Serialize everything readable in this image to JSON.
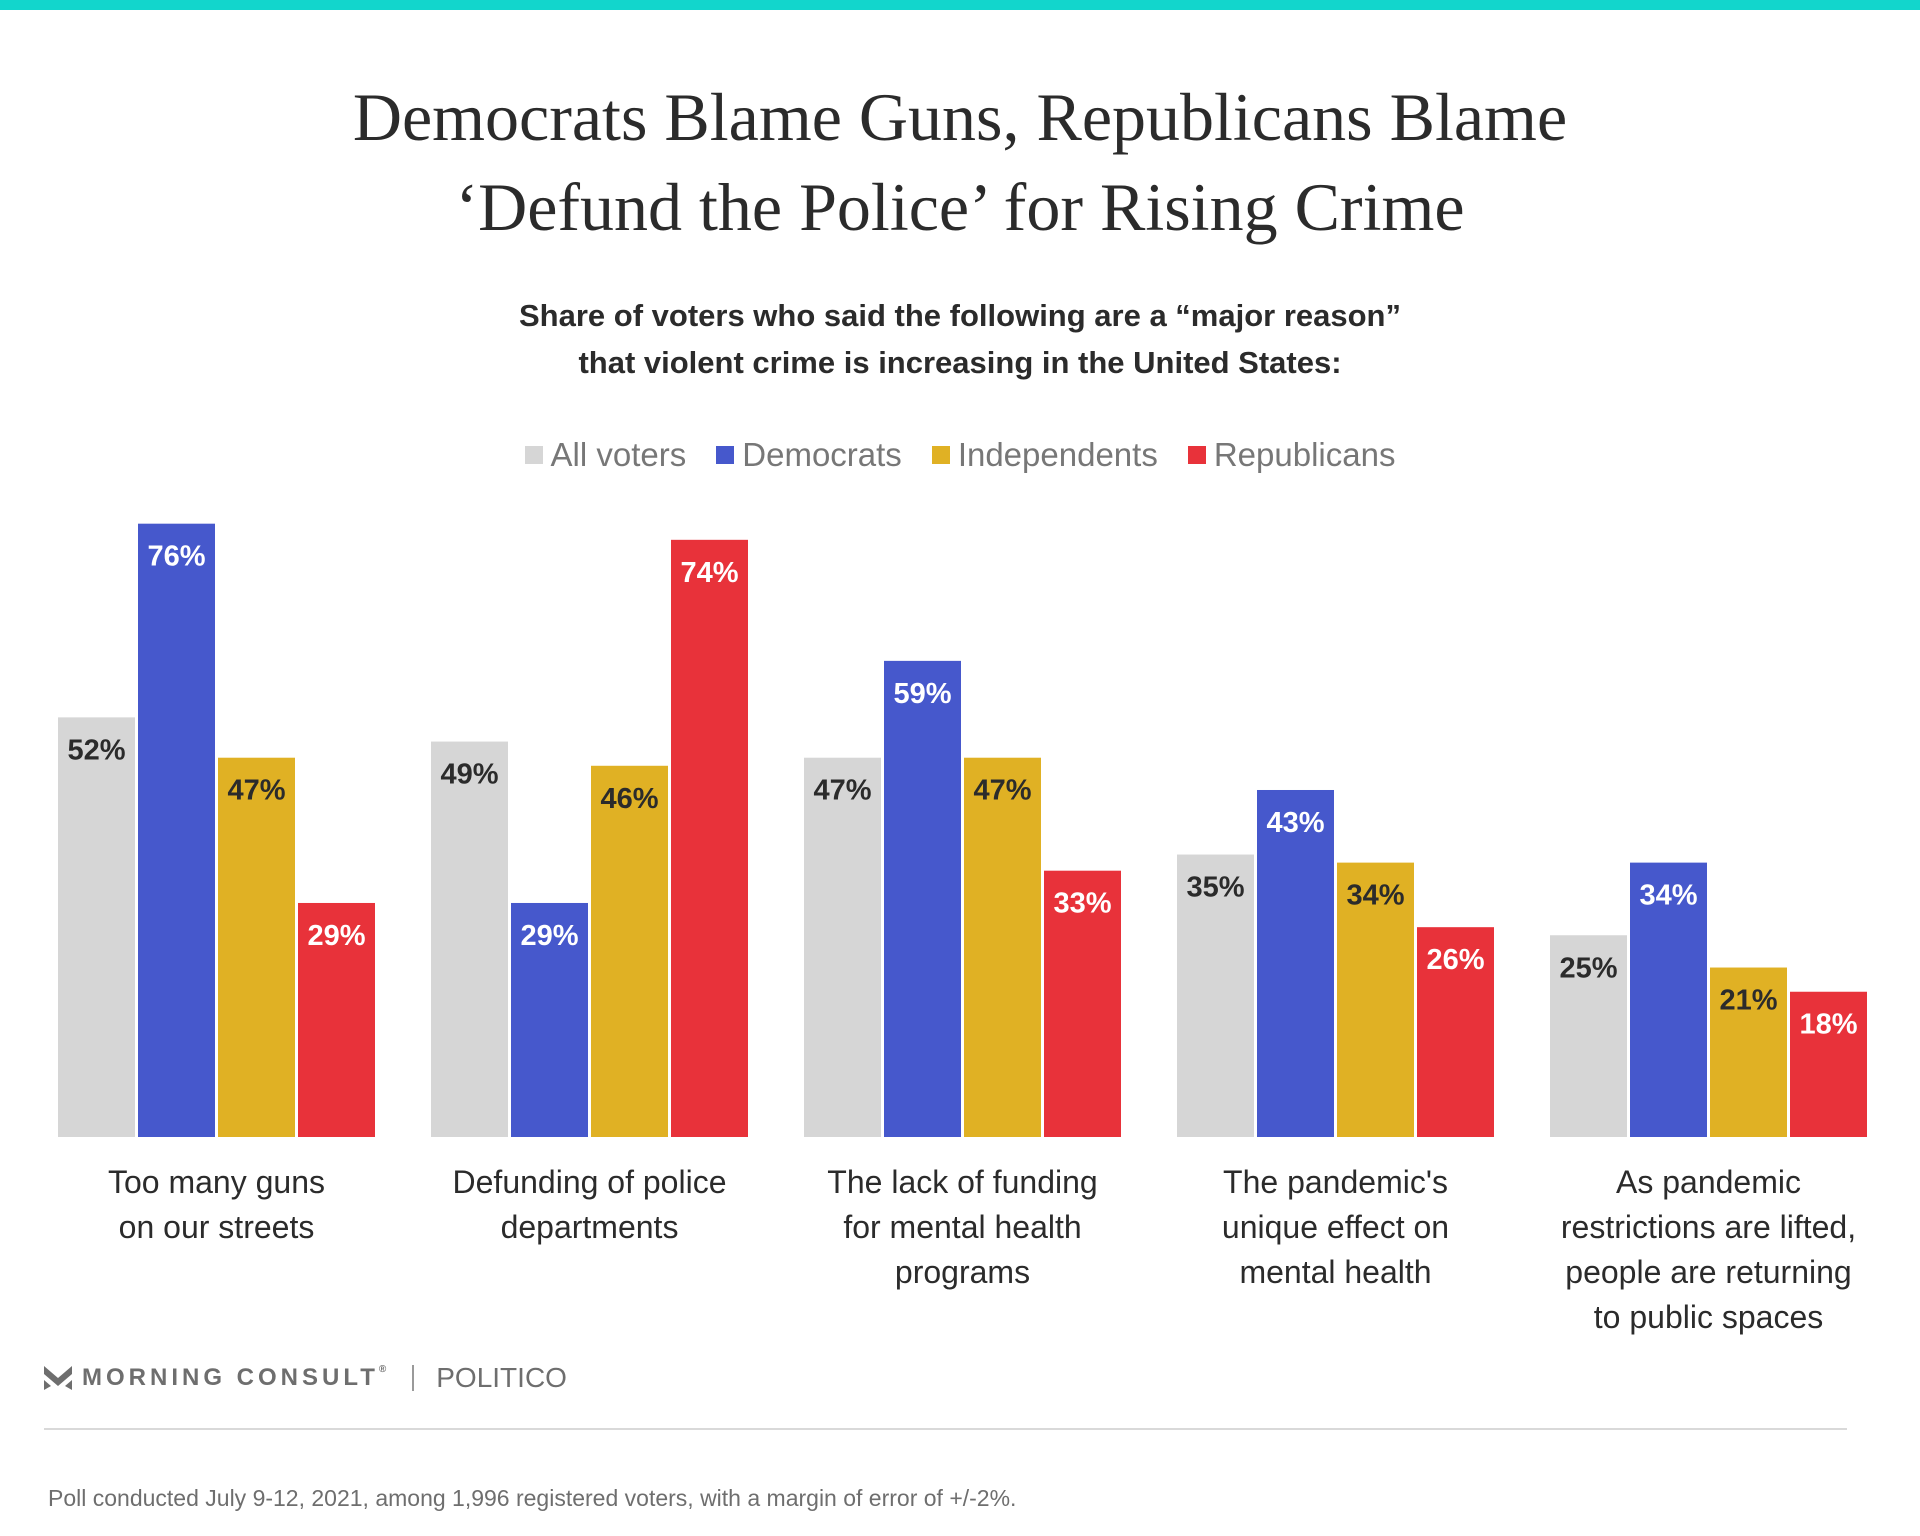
{
  "brand": {
    "accent_bar_color": "#12d6cc"
  },
  "title": {
    "line1": "Democrats Blame Guns, Republicans Blame",
    "line2": "‘Defund the Police’ for Rising Crime"
  },
  "subtitle": {
    "line1": "Share of voters who said the following are a “major reason”",
    "line2": "that violent crime is increasing in the United States:"
  },
  "legend": [
    {
      "label": "All voters",
      "color": "#d6d6d6"
    },
    {
      "label": "Democrats",
      "color": "#4658cc"
    },
    {
      "label": "Independents",
      "color": "#e0b124"
    },
    {
      "label": "Republicans",
      "color": "#e8323a"
    }
  ],
  "categories": [
    {
      "lines": [
        "Too many guns",
        "on our streets"
      ]
    },
    {
      "lines": [
        "Defunding of police",
        "departments"
      ]
    },
    {
      "lines": [
        "The lack of funding",
        "for mental health",
        "programs"
      ]
    },
    {
      "lines": [
        "The pandemic's",
        "unique effect on",
        "mental health"
      ]
    },
    {
      "lines": [
        "As pandemic",
        "restrictions are lifted,",
        "people are returning",
        "to public spaces"
      ]
    }
  ],
  "chart_data": {
    "type": "bar",
    "title": "Democrats Blame Guns, Republicans Blame ‘Defund the Police’ for Rising Crime",
    "subtitle": "Share of voters who said the following are a “major reason” that violent crime is increasing in the United States:",
    "categories": [
      "Too many guns on our streets",
      "Defunding of police departments",
      "The lack of funding for mental health programs",
      "The pandemic's unique effect on mental health",
      "As pandemic restrictions are lifted, people are returning to public spaces"
    ],
    "series": [
      {
        "name": "All voters",
        "color": "#d6d6d6",
        "label_color": "#2b2b2b",
        "values": [
          52,
          49,
          47,
          35,
          25
        ]
      },
      {
        "name": "Democrats",
        "color": "#4658cc",
        "label_color": "#ffffff",
        "values": [
          76,
          29,
          59,
          43,
          34
        ]
      },
      {
        "name": "Independents",
        "color": "#e0b124",
        "label_color": "#2b2b2b",
        "values": [
          47,
          46,
          47,
          34,
          21
        ]
      },
      {
        "name": "Republicans",
        "color": "#e8323a",
        "label_color": "#ffffff",
        "values": [
          29,
          74,
          33,
          26,
          18
        ]
      }
    ],
    "value_suffix": "%",
    "xlabel": "",
    "ylabel": "",
    "ylim": [
      0,
      100
    ],
    "grid": false,
    "legend_position": "top-center"
  },
  "footer": {
    "logo_text": "MORNING CONSULT",
    "registered_mark": "®",
    "partner": "POLITICO",
    "footnote": "Poll conducted July 9-12, 2021, among 1,996 registered voters, with a margin of error of +/-2%."
  }
}
